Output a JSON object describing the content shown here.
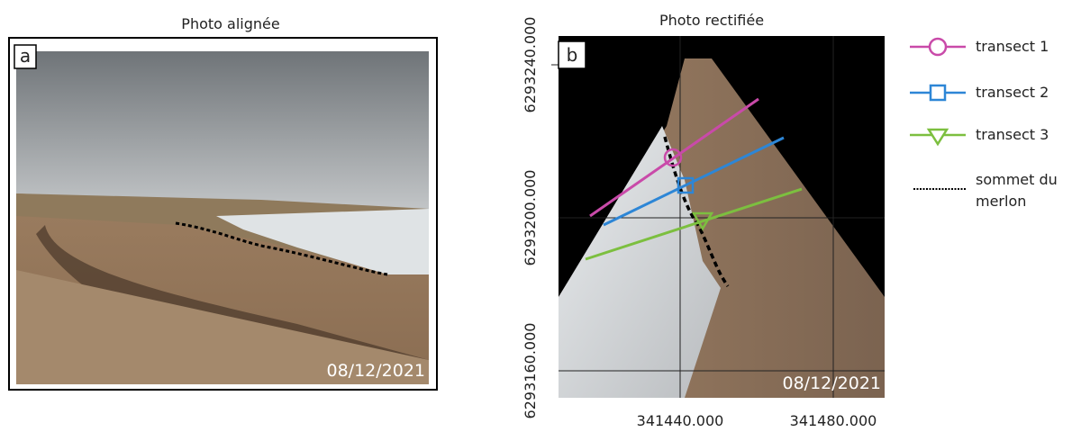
{
  "panel_a": {
    "title": "Photo alignée",
    "label": "a",
    "date": "08/12/2021"
  },
  "panel_b": {
    "title": "Photo rectifiée",
    "label": "b",
    "date": "08/12/2021",
    "y_tick_labels": [
      "6293240.000",
      "6293200.000",
      "6293160.000"
    ],
    "x_tick_labels": [
      "341440.000",
      "341480.000"
    ]
  },
  "legend": {
    "items": [
      "transect 1",
      "transect 2",
      "transect 3",
      "sommet du merlon"
    ]
  }
}
